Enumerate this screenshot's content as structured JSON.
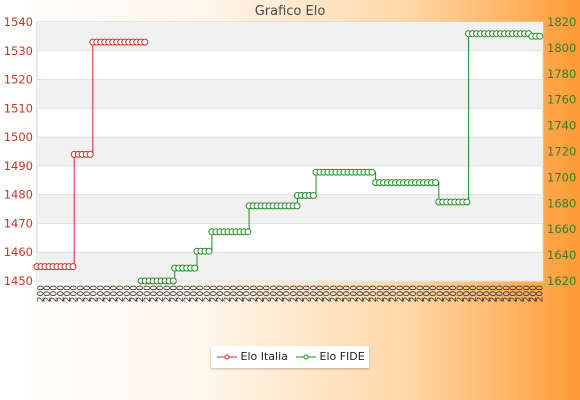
{
  "chart_data": {
    "type": "line",
    "title": "Grafico Elo",
    "xlabel": "",
    "ylabel": "",
    "y_left_lim": [
      1450,
      1540
    ],
    "y_left_ticks": [
      1450,
      1460,
      1470,
      1480,
      1490,
      1500,
      1510,
      1520,
      1530,
      1540
    ],
    "y_right_lim": [
      1620,
      1820
    ],
    "y_right_ticks": [
      1620,
      1640,
      1660,
      1680,
      1700,
      1720,
      1740,
      1760,
      1780,
      1800,
      1820
    ],
    "grid": "horizontal bands",
    "legend_position": "bottom",
    "n_points": 76,
    "x_tick_prefix": "200",
    "series": [
      {
        "name": "Elo Italia",
        "axis": "left",
        "color": "#d62728",
        "runs": [
          [
            0,
            10,
            1455
          ],
          [
            10,
            15,
            1494
          ],
          [
            15,
            29,
            1533
          ]
        ]
      },
      {
        "name": "Elo FIDE",
        "axis": "right",
        "color": "#1f8a1f",
        "runs": [
          [
            28,
            37,
            1620
          ],
          [
            37,
            43,
            1630
          ],
          [
            43,
            47,
            1643
          ],
          [
            47,
            57,
            1658
          ],
          [
            57,
            70,
            1678
          ],
          [
            70,
            75,
            1686
          ],
          [
            75,
            91,
            1704
          ],
          [
            91,
            108,
            1696
          ],
          [
            108,
            116,
            1681
          ],
          [
            116,
            133,
            1811
          ],
          [
            133,
            136,
            1809
          ]
        ]
      }
    ]
  },
  "colors": {
    "italia": "#d62728",
    "fide": "#1f8a1f"
  }
}
